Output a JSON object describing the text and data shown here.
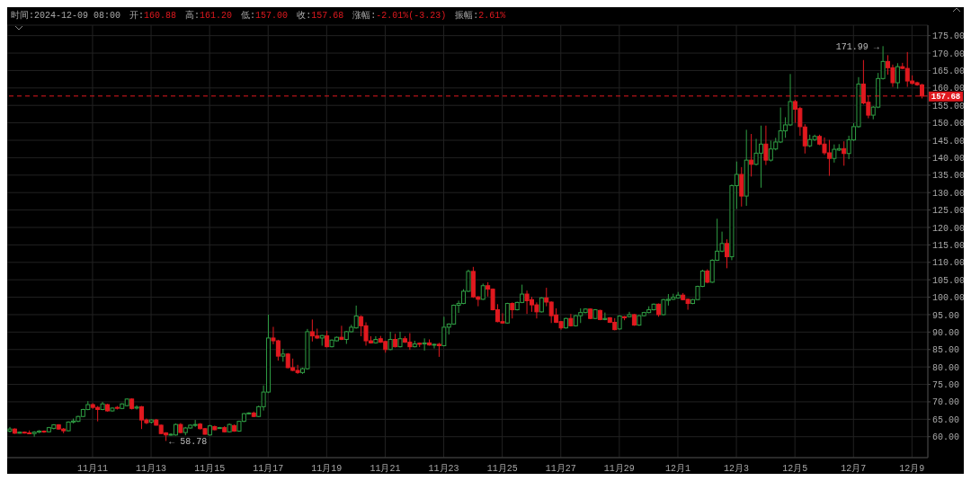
{
  "chart_data": {
    "type": "candlestick",
    "annotations": [
      "时间:2024-12-09 08:00",
      "开:160.88",
      "高:161.20",
      "低:157.00",
      "收:157.68",
      "涨幅:-2.01%(-3.23)",
      "振幅:2.61%",
      {
        "text": "171.99 →",
        "x": "2024-12-08T00:00",
        "y": 171.99
      },
      {
        "text": "← 58.78",
        "x": "2024-11-13T12:00",
        "y": 58.78
      }
    ],
    "x": [
      "2024-11-08T04:00",
      "2024-11-08T08:00",
      "2024-11-08T12:00",
      "2024-11-08T16:00",
      "2024-11-08T20:00",
      "2024-11-09T00:00",
      "2024-11-09T04:00",
      "2024-11-09T08:00",
      "2024-11-09T12:00",
      "2024-11-09T16:00",
      "2024-11-09T20:00",
      "2024-11-10T00:00",
      "2024-11-10T04:00",
      "2024-11-10T08:00",
      "2024-11-10T12:00",
      "2024-11-10T16:00",
      "2024-11-10T20:00",
      "2024-11-11T00:00",
      "2024-11-11T04:00",
      "2024-11-11T08:00",
      "2024-11-11T12:00",
      "2024-11-11T16:00",
      "2024-11-11T20:00",
      "2024-11-12T00:00",
      "2024-11-12T04:00",
      "2024-11-12T08:00",
      "2024-11-12T12:00",
      "2024-11-12T16:00",
      "2024-11-12T20:00",
      "2024-11-13T00:00",
      "2024-11-13T04:00",
      "2024-11-13T08:00",
      "2024-11-13T12:00",
      "2024-11-13T16:00",
      "2024-11-13T20:00",
      "2024-11-14T00:00",
      "2024-11-14T04:00",
      "2024-11-14T08:00",
      "2024-11-14T12:00",
      "2024-11-14T16:00",
      "2024-11-14T20:00",
      "2024-11-15T00:00",
      "2024-11-15T04:00",
      "2024-11-15T08:00",
      "2024-11-15T12:00",
      "2024-11-15T16:00",
      "2024-11-15T20:00",
      "2024-11-16T00:00",
      "2024-11-16T04:00",
      "2024-11-16T08:00",
      "2024-11-16T12:00",
      "2024-11-16T16:00",
      "2024-11-16T20:00",
      "2024-11-17T00:00",
      "2024-11-17T04:00",
      "2024-11-17T08:00",
      "2024-11-17T12:00",
      "2024-11-17T16:00",
      "2024-11-17T20:00",
      "2024-11-18T00:00",
      "2024-11-18T04:00",
      "2024-11-18T08:00",
      "2024-11-18T12:00",
      "2024-11-18T16:00",
      "2024-11-18T20:00",
      "2024-11-19T00:00",
      "2024-11-19T04:00",
      "2024-11-19T08:00",
      "2024-11-19T12:00",
      "2024-11-19T16:00",
      "2024-11-19T20:00",
      "2024-11-20T00:00",
      "2024-11-20T04:00",
      "2024-11-20T08:00",
      "2024-11-20T12:00",
      "2024-11-20T16:00",
      "2024-11-20T20:00",
      "2024-11-21T00:00",
      "2024-11-21T04:00",
      "2024-11-21T08:00",
      "2024-11-21T12:00",
      "2024-11-21T16:00",
      "2024-11-21T20:00",
      "2024-11-22T00:00",
      "2024-11-22T04:00",
      "2024-11-22T08:00",
      "2024-11-22T12:00",
      "2024-11-22T16:00",
      "2024-11-22T20:00",
      "2024-11-23T00:00",
      "2024-11-23T04:00",
      "2024-11-23T08:00",
      "2024-11-23T12:00",
      "2024-11-23T16:00",
      "2024-11-23T20:00",
      "2024-11-24T00:00",
      "2024-11-24T04:00",
      "2024-11-24T08:00",
      "2024-11-24T12:00",
      "2024-11-24T16:00",
      "2024-11-24T20:00",
      "2024-11-25T00:00",
      "2024-11-25T04:00",
      "2024-11-25T08:00",
      "2024-11-25T12:00",
      "2024-11-25T16:00",
      "2024-11-25T20:00",
      "2024-11-26T00:00",
      "2024-11-26T04:00",
      "2024-11-26T08:00",
      "2024-11-26T12:00",
      "2024-11-26T16:00",
      "2024-11-26T20:00",
      "2024-11-27T00:00",
      "2024-11-27T04:00",
      "2024-11-27T08:00",
      "2024-11-27T12:00",
      "2024-11-27T16:00",
      "2024-11-27T20:00",
      "2024-11-28T00:00",
      "2024-11-28T04:00",
      "2024-11-28T08:00",
      "2024-11-28T12:00",
      "2024-11-28T16:00",
      "2024-11-28T20:00",
      "2024-11-29T00:00",
      "2024-11-29T04:00",
      "2024-11-29T08:00",
      "2024-11-29T12:00",
      "2024-11-29T16:00",
      "2024-11-29T20:00",
      "2024-11-30T00:00",
      "2024-11-30T04:00",
      "2024-11-30T08:00",
      "2024-11-30T12:00",
      "2024-11-30T16:00",
      "2024-11-30T20:00",
      "2024-12-01T00:00",
      "2024-12-01T04:00",
      "2024-12-01T08:00",
      "2024-12-01T12:00",
      "2024-12-01T16:00",
      "2024-12-01T20:00",
      "2024-12-02T00:00",
      "2024-12-02T04:00",
      "2024-12-02T08:00",
      "2024-12-02T12:00",
      "2024-12-02T16:00",
      "2024-12-02T20:00",
      "2024-12-03T00:00",
      "2024-12-03T04:00",
      "2024-12-03T08:00",
      "2024-12-03T12:00",
      "2024-12-03T16:00",
      "2024-12-03T20:00",
      "2024-12-04T00:00",
      "2024-12-04T04:00",
      "2024-12-04T08:00",
      "2024-12-04T12:00",
      "2024-12-04T16:00",
      "2024-12-04T20:00",
      "2024-12-05T00:00",
      "2024-12-05T04:00",
      "2024-12-05T08:00",
      "2024-12-05T12:00",
      "2024-12-05T16:00",
      "2024-12-05T20:00",
      "2024-12-06T00:00",
      "2024-12-06T04:00",
      "2024-12-06T08:00",
      "2024-12-06T12:00",
      "2024-12-06T16:00",
      "2024-12-06T20:00",
      "2024-12-07T00:00",
      "2024-12-07T04:00",
      "2024-12-07T08:00",
      "2024-12-07T12:00",
      "2024-12-07T16:00",
      "2024-12-07T20:00",
      "2024-12-08T00:00",
      "2024-12-08T04:00",
      "2024-12-08T08:00",
      "2024-12-08T12:00",
      "2024-12-08T16:00",
      "2024-12-08T20:00",
      "2024-12-09T00:00",
      "2024-12-09T04:00",
      "2024-12-09T08:00"
    ],
    "ohlc": [
      [
        61.6,
        62.8,
        61.2,
        62.2
      ],
      [
        62.2,
        62.4,
        60.8,
        61.0
      ],
      [
        61.0,
        61.5,
        60.9,
        61.3
      ],
      [
        61.3,
        61.5,
        60.9,
        61.1
      ],
      [
        61.1,
        61.8,
        60.8,
        60.9
      ],
      [
        60.9,
        61.6,
        60.0,
        61.3
      ],
      [
        61.3,
        61.9,
        61.0,
        61.6
      ],
      [
        61.6,
        61.8,
        61.1,
        61.4
      ],
      [
        61.4,
        62.8,
        61.2,
        62.6
      ],
      [
        62.4,
        63.6,
        62.1,
        63.4
      ],
      [
        63.4,
        63.6,
        62.0,
        62.2
      ],
      [
        62.2,
        62.5,
        61.0,
        61.7
      ],
      [
        61.7,
        64.4,
        61.5,
        64.2
      ],
      [
        64.2,
        65.2,
        63.8,
        64.5
      ],
      [
        64.4,
        66.0,
        64.2,
        65.8
      ],
      [
        65.8,
        68.0,
        65.6,
        67.8
      ],
      [
        67.8,
        70.2,
        67.6,
        69.2
      ],
      [
        69.2,
        69.6,
        68.0,
        68.4
      ],
      [
        68.4,
        68.8,
        64.4,
        67.8
      ],
      [
        67.8,
        70.0,
        67.6,
        69.4
      ],
      [
        69.2,
        69.4,
        67.2,
        67.4
      ],
      [
        67.4,
        68.4,
        67.2,
        68.2
      ],
      [
        68.4,
        68.8,
        67.8,
        68.2
      ],
      [
        68.1,
        69.6,
        67.9,
        69.4
      ],
      [
        68.9,
        71.0,
        68.7,
        70.8
      ],
      [
        70.8,
        71.0,
        67.8,
        68.1
      ],
      [
        68.2,
        69.0,
        67.8,
        68.5
      ],
      [
        68.6,
        68.8,
        62.2,
        64.8
      ],
      [
        64.8,
        65.2,
        63.6,
        64.0
      ],
      [
        64.2,
        65.0,
        63.8,
        64.8
      ],
      [
        64.8,
        65.1,
        63.2,
        63.3
      ],
      [
        63.3,
        63.5,
        60.8,
        60.9
      ],
      [
        61.1,
        61.3,
        58.78,
        60.5
      ],
      [
        60.5,
        61.0,
        60.3,
        60.7
      ],
      [
        60.5,
        63.8,
        60.3,
        63.5
      ],
      [
        63.5,
        63.9,
        61.0,
        61.2
      ],
      [
        61.2,
        62.8,
        60.4,
        62.5
      ],
      [
        62.5,
        63.5,
        62.3,
        63.3
      ],
      [
        63.3,
        64.8,
        62.8,
        63.5
      ],
      [
        63.6,
        63.9,
        62.1,
        62.3
      ],
      [
        62.3,
        62.5,
        60.6,
        60.7
      ],
      [
        60.5,
        63.4,
        60.3,
        63.1
      ],
      [
        62.9,
        63.2,
        61.8,
        62.0
      ],
      [
        62.4,
        62.8,
        62.3,
        62.6
      ],
      [
        62.6,
        63.0,
        61.2,
        61.4
      ],
      [
        61.4,
        63.8,
        61.2,
        63.5
      ],
      [
        63.2,
        63.5,
        61.4,
        61.6
      ],
      [
        61.6,
        64.6,
        61.4,
        64.4
      ],
      [
        64.4,
        66.8,
        64.2,
        66.6
      ],
      [
        66.6,
        67.0,
        66.4,
        66.8
      ],
      [
        66.8,
        67.2,
        65.6,
        65.8
      ],
      [
        65.8,
        68.9,
        65.6,
        68.6
      ],
      [
        68.6,
        74.7,
        67.5,
        72.8
      ],
      [
        72.8,
        95.0,
        72.5,
        88.3
      ],
      [
        88.3,
        91.5,
        86.5,
        87.5
      ],
      [
        87.5,
        87.8,
        81.8,
        83.1
      ],
      [
        83.1,
        85.2,
        81.5,
        83.7
      ],
      [
        83.7,
        84.0,
        79.6,
        79.8
      ],
      [
        79.8,
        82.4,
        78.8,
        79.0
      ],
      [
        79.0,
        80.6,
        78.0,
        78.4
      ],
      [
        78.4,
        79.8,
        78.0,
        79.5
      ],
      [
        79.5,
        90.9,
        79.2,
        90.1
      ],
      [
        90.1,
        93.6,
        87.3,
        88.9
      ],
      [
        88.9,
        91.0,
        88.0,
        88.3
      ],
      [
        88.3,
        89.2,
        86.1,
        89.0
      ],
      [
        88.9,
        90.4,
        85.6,
        85.8
      ],
      [
        85.8,
        87.9,
        85.6,
        87.7
      ],
      [
        87.5,
        88.7,
        87.3,
        88.5
      ],
      [
        88.5,
        91.8,
        87.7,
        87.9
      ],
      [
        87.9,
        90.3,
        86.6,
        90.1
      ],
      [
        90.1,
        92.1,
        89.9,
        91.4
      ],
      [
        91.2,
        97.6,
        91.0,
        94.6
      ],
      [
        94.4,
        94.8,
        88.8,
        91.8
      ],
      [
        91.8,
        92.8,
        86.1,
        87.5
      ],
      [
        87.5,
        88.8,
        86.7,
        86.9
      ],
      [
        86.9,
        88.8,
        86.7,
        87.9
      ],
      [
        88.1,
        88.9,
        86.9,
        87.1
      ],
      [
        87.3,
        87.5,
        84.1,
        85.0
      ],
      [
        85.0,
        90.1,
        84.8,
        87.9
      ],
      [
        87.9,
        89.5,
        85.6,
        85.8
      ],
      [
        85.8,
        90.1,
        85.6,
        88.1
      ],
      [
        88.1,
        88.8,
        86.9,
        87.1
      ],
      [
        87.1,
        89.7,
        84.9,
        85.8
      ],
      [
        85.8,
        87.5,
        85.6,
        86.6
      ],
      [
        86.8,
        87.0,
        85.7,
        86.5
      ],
      [
        86.6,
        88.2,
        84.7,
        86.9
      ],
      [
        86.9,
        87.9,
        86.1,
        86.3
      ],
      [
        86.3,
        86.7,
        85.3,
        86.5
      ],
      [
        86.5,
        86.9,
        82.9,
        86.1
      ],
      [
        86.1,
        94.4,
        85.9,
        91.4
      ],
      [
        91.4,
        92.5,
        89.3,
        92.3
      ],
      [
        92.3,
        97.9,
        92.1,
        97.7
      ],
      [
        97.7,
        99.0,
        95.5,
        98.2
      ],
      [
        98.2,
        102.3,
        98.0,
        101.7
      ],
      [
        101.7,
        107.9,
        101.5,
        107.4
      ],
      [
        107.4,
        108.7,
        99.8,
        100.1
      ],
      [
        100.1,
        100.3,
        97.4,
        99.4
      ],
      [
        99.4,
        103.9,
        99.2,
        103.3
      ],
      [
        103.3,
        104.3,
        100.2,
        102.3
      ],
      [
        102.3,
        102.5,
        96.2,
        96.4
      ],
      [
        96.4,
        98.0,
        92.8,
        93.0
      ],
      [
        93.0,
        95.4,
        92.4,
        92.6
      ],
      [
        92.6,
        98.4,
        92.4,
        98.2
      ],
      [
        98.2,
        98.5,
        93.9,
        96.4
      ],
      [
        96.4,
        98.7,
        96.2,
        98.5
      ],
      [
        98.5,
        103.6,
        98.3,
        100.9
      ],
      [
        100.9,
        101.9,
        95.2,
        99.0
      ],
      [
        99.3,
        100.1,
        95.8,
        97.8
      ],
      [
        97.8,
        98.5,
        93.9,
        95.8
      ],
      [
        95.8,
        100.0,
        95.6,
        99.8
      ],
      [
        99.8,
        102.7,
        97.4,
        98.6
      ],
      [
        98.6,
        98.8,
        92.6,
        94.7
      ],
      [
        94.9,
        96.8,
        92.6,
        92.8
      ],
      [
        93.0,
        93.2,
        90.7,
        91.2
      ],
      [
        91.2,
        94.1,
        91.0,
        93.9
      ],
      [
        93.9,
        95.2,
        91.6,
        91.8
      ],
      [
        91.8,
        94.9,
        91.6,
        94.7
      ],
      [
        94.7,
        96.8,
        92.6,
        95.6
      ],
      [
        95.6,
        96.8,
        95.4,
        96.6
      ],
      [
        96.6,
        96.8,
        93.7,
        93.9
      ],
      [
        93.9,
        96.6,
        93.7,
        96.4
      ],
      [
        96.2,
        96.4,
        93.4,
        93.6
      ],
      [
        93.6,
        95.6,
        93.4,
        93.9
      ],
      [
        94.1,
        94.3,
        92.6,
        92.8
      ],
      [
        92.8,
        94.0,
        90.5,
        90.7
      ],
      [
        90.9,
        94.8,
        90.7,
        94.6
      ],
      [
        94.4,
        94.6,
        93.4,
        94.1
      ],
      [
        94.4,
        95.8,
        94.2,
        95.0
      ],
      [
        95.0,
        95.2,
        91.8,
        92.0
      ],
      [
        92.0,
        94.9,
        91.8,
        94.7
      ],
      [
        94.7,
        95.8,
        94.5,
        95.6
      ],
      [
        95.6,
        97.4,
        95.4,
        96.4
      ],
      [
        96.4,
        98.2,
        96.2,
        98.0
      ],
      [
        98.0,
        98.2,
        94.4,
        95.0
      ],
      [
        95.0,
        99.5,
        94.8,
        99.3
      ],
      [
        99.1,
        100.9,
        97.6,
        99.4
      ],
      [
        99.4,
        101.0,
        99.2,
        100.0
      ],
      [
        99.8,
        101.5,
        99.6,
        100.6
      ],
      [
        100.6,
        101.2,
        99.1,
        99.3
      ],
      [
        99.4,
        99.6,
        96.4,
        98.2
      ],
      [
        98.2,
        99.5,
        98.0,
        99.3
      ],
      [
        99.3,
        103.3,
        99.1,
        103.1
      ],
      [
        103.1,
        107.9,
        102.9,
        107.5
      ],
      [
        107.5,
        108.0,
        104.0,
        104.3
      ],
      [
        104.3,
        110.9,
        104.1,
        110.6
      ],
      [
        110.6,
        122.5,
        110.4,
        113.2
      ],
      [
        113.2,
        118.8,
        112.9,
        115.4
      ],
      [
        115.4,
        116.6,
        108.3,
        111.6
      ],
      [
        111.6,
        132.3,
        110.6,
        132.0
      ],
      [
        132.0,
        138.9,
        125.3,
        135.2
      ],
      [
        135.2,
        137.3,
        126.0,
        129.0
      ],
      [
        129.0,
        148.0,
        126.2,
        139.3
      ],
      [
        139.3,
        146.8,
        134.6,
        138.1
      ],
      [
        138.1,
        145.4,
        137.8,
        141.3
      ],
      [
        141.3,
        149.2,
        131.4,
        143.9
      ],
      [
        143.9,
        149.2,
        137.9,
        139.3
      ],
      [
        139.3,
        144.9,
        138.9,
        142.5
      ],
      [
        142.5,
        145.7,
        142.1,
        144.5
      ],
      [
        144.5,
        154.4,
        144.2,
        147.7
      ],
      [
        147.7,
        151.6,
        145.7,
        149.4
      ],
      [
        149.4,
        164.0,
        149.1,
        156.1
      ],
      [
        156.1,
        156.6,
        150.0,
        153.9
      ],
      [
        154.1,
        154.6,
        146.3,
        148.9
      ],
      [
        148.8,
        149.6,
        141.2,
        143.4
      ],
      [
        143.4,
        146.6,
        143.0,
        145.2
      ],
      [
        145.2,
        146.6,
        144.8,
        146.1
      ],
      [
        146.1,
        146.6,
        143.6,
        143.9
      ],
      [
        143.9,
        145.8,
        140.8,
        141.4
      ],
      [
        141.4,
        145.1,
        134.8,
        139.8
      ],
      [
        139.8,
        143.8,
        138.6,
        142.4
      ],
      [
        142.2,
        143.9,
        141.9,
        142.6
      ],
      [
        142.6,
        144.7,
        137.7,
        141.2
      ],
      [
        141.2,
        146.3,
        139.6,
        145.1
      ],
      [
        145.1,
        149.9,
        144.8,
        148.9
      ],
      [
        148.9,
        163.1,
        148.6,
        161.1
      ],
      [
        161.1,
        168.0,
        155.3,
        155.7
      ],
      [
        155.9,
        157.7,
        151.3,
        152.2
      ],
      [
        152.2,
        154.8,
        151.0,
        154.5
      ],
      [
        154.5,
        164.3,
        154.2,
        162.7
      ],
      [
        162.7,
        171.99,
        162.4,
        167.6
      ],
      [
        167.6,
        169.4,
        163.8,
        165.8
      ],
      [
        165.8,
        166.7,
        160.3,
        161.5
      ],
      [
        161.5,
        167.1,
        159.8,
        166.1
      ],
      [
        166.1,
        167.2,
        165.4,
        165.6
      ],
      [
        165.6,
        170.3,
        160.3,
        162.0
      ],
      [
        162.0,
        163.6,
        161.0,
        161.3
      ],
      [
        161.5,
        161.8,
        160.6,
        160.9
      ],
      [
        160.88,
        161.2,
        157.0,
        157.68
      ]
    ],
    "colors": [
      "#2f9e44",
      "#e0191f",
      "#2f9e44",
      "#e0191f",
      "#e0191f",
      "#2f9e44",
      "#2f9e44",
      "#e0191f",
      "#2f9e44",
      "#2f9e44",
      "#e0191f",
      "#e0191f",
      "#2f9e44",
      "#2f9e44",
      "#2f9e44",
      "#2f9e44",
      "#2f9e44",
      "#e0191f",
      "#e0191f",
      "#2f9e44",
      "#e0191f",
      "#2f9e44",
      "#e0191f",
      "#2f9e44",
      "#2f9e44",
      "#e0191f",
      "#2f9e44",
      "#e0191f",
      "#e0191f",
      "#2f9e44",
      "#e0191f",
      "#e0191f",
      "#e0191f",
      "#2f9e44",
      "#2f9e44",
      "#e0191f",
      "#2f9e44",
      "#2f9e44",
      "#2f9e44",
      "#e0191f",
      "#e0191f",
      "#2f9e44",
      "#e0191f",
      "#2f9e44",
      "#e0191f",
      "#2f9e44",
      "#e0191f",
      "#2f9e44",
      "#2f9e44",
      "#2f9e44",
      "#e0191f",
      "#2f9e44",
      "#2f9e44",
      "#2f9e44",
      "#e0191f",
      "#e0191f",
      "#2f9e44",
      "#e0191f",
      "#e0191f",
      "#e0191f",
      "#2f9e44",
      "#2f9e44",
      "#e0191f",
      "#e0191f",
      "#2f9e44",
      "#e0191f",
      "#2f9e44",
      "#2f9e44",
      "#e0191f",
      "#2f9e44",
      "#2f9e44",
      "#2f9e44",
      "#e0191f",
      "#e0191f",
      "#e0191f",
      "#2f9e44",
      "#e0191f",
      "#e0191f",
      "#2f9e44",
      "#e0191f",
      "#2f9e44",
      "#e0191f",
      "#e0191f",
      "#2f9e44",
      "#e0191f",
      "#2f9e44",
      "#e0191f",
      "#2f9e44",
      "#e0191f",
      "#2f9e44",
      "#2f9e44",
      "#2f9e44",
      "#2f9e44",
      "#2f9e44",
      "#2f9e44",
      "#e0191f",
      "#e0191f",
      "#2f9e44",
      "#e0191f",
      "#e0191f",
      "#e0191f",
      "#e0191f",
      "#2f9e44",
      "#e0191f",
      "#2f9e44",
      "#2f9e44",
      "#e0191f",
      "#e0191f",
      "#e0191f",
      "#2f9e44",
      "#e0191f",
      "#e0191f",
      "#e0191f",
      "#e0191f",
      "#2f9e44",
      "#e0191f",
      "#2f9e44",
      "#2f9e44",
      "#2f9e44",
      "#e0191f",
      "#2f9e44",
      "#e0191f",
      "#2f9e44",
      "#e0191f",
      "#e0191f",
      "#2f9e44",
      "#e0191f",
      "#2f9e44",
      "#e0191f",
      "#2f9e44",
      "#2f9e44",
      "#2f9e44",
      "#2f9e44",
      "#e0191f",
      "#2f9e44",
      "#2f9e44",
      "#2f9e44",
      "#2f9e44",
      "#e0191f",
      "#e0191f",
      "#2f9e44",
      "#2f9e44",
      "#2f9e44",
      "#e0191f",
      "#2f9e44",
      "#2f9e44",
      "#2f9e44",
      "#e0191f",
      "#2f9e44",
      "#2f9e44",
      "#e0191f",
      "#2f9e44",
      "#e0191f",
      "#2f9e44",
      "#2f9e44",
      "#e0191f",
      "#2f9e44",
      "#2f9e44",
      "#2f9e44",
      "#2f9e44",
      "#2f9e44",
      "#e0191f",
      "#e0191f",
      "#e0191f",
      "#2f9e44",
      "#2f9e44",
      "#e0191f",
      "#e0191f",
      "#e0191f",
      "#2f9e44",
      "#2f9e44",
      "#e0191f",
      "#2f9e44",
      "#2f9e44",
      "#2f9e44",
      "#e0191f",
      "#e0191f",
      "#2f9e44",
      "#2f9e44",
      "#2f9e44",
      "#e0191f",
      "#e0191f",
      "#2f9e44",
      "#e0191f",
      "#e0191f",
      "#e0191f",
      "#e0191f",
      "#e0191f"
    ],
    "xlim": [
      "2024-11-08T02:00",
      "2024-12-09T13:00"
    ],
    "xticks": [
      {
        "value": "2024-11-11",
        "label": "11月11"
      },
      {
        "value": "2024-11-13",
        "label": "11月13"
      },
      {
        "value": "2024-11-15",
        "label": "11月15"
      },
      {
        "value": "2024-11-17",
        "label": "11月17"
      },
      {
        "value": "2024-11-19",
        "label": "11月19"
      },
      {
        "value": "2024-11-21",
        "label": "11月21"
      },
      {
        "value": "2024-11-23",
        "label": "11月23"
      },
      {
        "value": "2024-11-25",
        "label": "11月25"
      },
      {
        "value": "2024-11-27",
        "label": "11月27"
      },
      {
        "value": "2024-11-29",
        "label": "11月29"
      },
      {
        "value": "2024-12-01",
        "label": "12月1"
      },
      {
        "value": "2024-12-03",
        "label": "12月3"
      },
      {
        "value": "2024-12-05",
        "label": "12月5"
      },
      {
        "value": "2024-12-07",
        "label": "12月7"
      },
      {
        "value": "2024-12-09",
        "label": "12月9"
      }
    ],
    "ylim": [
      54,
      178
    ],
    "yticks": [
      {
        "value": 60,
        "label": "60.00"
      },
      {
        "value": 65,
        "label": "65.00"
      },
      {
        "value": 70,
        "label": "70.00"
      },
      {
        "value": 75,
        "label": "75.00"
      },
      {
        "value": 80,
        "label": "80.00"
      },
      {
        "value": 85,
        "label": "85.00"
      },
      {
        "value": 90,
        "label": "90.00"
      },
      {
        "value": 95,
        "label": "95.00"
      },
      {
        "value": 100,
        "label": "100.00"
      },
      {
        "value": 105,
        "label": "105.00"
      },
      {
        "value": 110,
        "label": "110.00"
      },
      {
        "value": 115,
        "label": "115.00"
      },
      {
        "value": 120,
        "label": "120.00"
      },
      {
        "value": 125,
        "label": "125.00"
      },
      {
        "value": 130,
        "label": "130.00"
      },
      {
        "value": 135,
        "label": "135.00"
      },
      {
        "value": 140,
        "label": "140.00"
      },
      {
        "value": 145,
        "label": "145.00"
      },
      {
        "value": 150,
        "label": "150.00"
      },
      {
        "value": 155,
        "label": "155.00"
      },
      {
        "value": 160,
        "label": "160.00"
      },
      {
        "value": 165,
        "label": "165.00"
      },
      {
        "value": 170,
        "label": "170.00"
      },
      {
        "value": 175,
        "label": "175.00"
      }
    ],
    "ref_lines": [
      {
        "axis": "y",
        "value": 157.68,
        "label": "157.68",
        "color": "#e0191f",
        "line_style": "dashed"
      }
    ],
    "grid": true
  }
}
